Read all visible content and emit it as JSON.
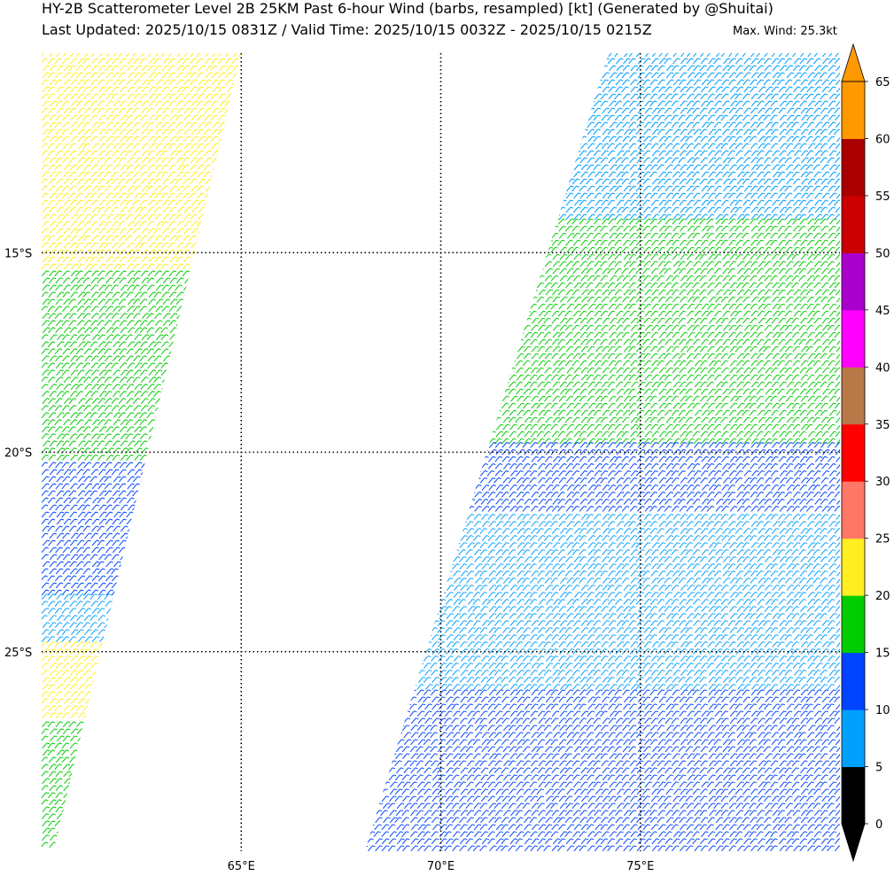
{
  "title_line1": "HY-2B Scatterometer Level 2B 25KM Past 6-hour Wind (barbs, resampled) [kt] (Generated by @Shuitai)",
  "title_line2": "Last Updated: 2025/10/15 0831Z / Valid Time: 2025/10/15 0032Z - 2025/10/15 0215Z",
  "max_wind": "Max. Wind: 25.3kt",
  "latitudes": [
    {
      "value": -15,
      "label": "15°S"
    },
    {
      "value": -20,
      "label": "20°S"
    },
    {
      "value": -25,
      "label": "25°S"
    }
  ],
  "longitudes": [
    {
      "value": 65,
      "label": "65°E"
    },
    {
      "value": 70,
      "label": "70°E"
    },
    {
      "value": 75,
      "label": "75°E"
    }
  ],
  "extent": {
    "lon_min": 60,
    "lon_max": 80,
    "lat_min": -30,
    "lat_max": -10
  },
  "colorbar": {
    "bins": [
      {
        "from": 0,
        "to": 5,
        "color": "#000000"
      },
      {
        "from": 5,
        "to": 10,
        "color": "#00a0ff"
      },
      {
        "from": 10,
        "to": 15,
        "color": "#0044ff"
      },
      {
        "from": 15,
        "to": 20,
        "color": "#00cc00"
      },
      {
        "from": 20,
        "to": 25,
        "color": "#ffee22"
      },
      {
        "from": 25,
        "to": 30,
        "color": "#ff7766"
      },
      {
        "from": 30,
        "to": 35,
        "color": "#ff0000"
      },
      {
        "from": 35,
        "to": 40,
        "color": "#b87848"
      },
      {
        "from": 40,
        "to": 45,
        "color": "#ff00ff"
      },
      {
        "from": 45,
        "to": 50,
        "color": "#aa00cc"
      },
      {
        "from": 50,
        "to": 55,
        "color": "#cc0000"
      },
      {
        "from": 55,
        "to": 60,
        "color": "#aa0000"
      },
      {
        "from": 60,
        "to": 65,
        "color": "#ff9900"
      }
    ],
    "tick_labels": [
      "0",
      "5",
      "10",
      "15",
      "20",
      "25",
      "30",
      "35",
      "40",
      "45",
      "50",
      "55",
      "60",
      "65"
    ],
    "under_color": "#000000",
    "over_color": "#ff9900"
  },
  "wind_swaths": [
    {
      "name": "western-swath",
      "polygon": [
        [
          60,
          -10
        ],
        [
          65,
          -10
        ],
        [
          60.3,
          -30
        ],
        [
          60,
          -30
        ]
      ],
      "regions": [
        {
          "lat_top": -10,
          "lat_bot": -15.5,
          "color": "#ffee22"
        },
        {
          "lat_top": -15.5,
          "lat_bot": -20.3,
          "color": "#00cc00"
        },
        {
          "lat_top": -20.3,
          "lat_bot": -23.6,
          "color": "#0044ff"
        },
        {
          "lat_top": -23.6,
          "lat_bot": -24.8,
          "color": "#00a0ff"
        },
        {
          "lat_top": -24.8,
          "lat_bot": -26.8,
          "color": "#ffee22"
        },
        {
          "lat_top": -26.8,
          "lat_bot": -30,
          "color": "#00cc00"
        }
      ]
    },
    {
      "name": "eastern-swath",
      "polygon": [
        [
          74.2,
          -10
        ],
        [
          80,
          -10
        ],
        [
          80,
          -30
        ],
        [
          68.1,
          -30
        ]
      ],
      "regions": [
        {
          "lat_top": -10,
          "lat_bot": -14.2,
          "color": "#00a0ff"
        },
        {
          "lat_top": -14.2,
          "lat_bot": -19.8,
          "color": "#00cc00"
        },
        {
          "lat_top": -19.8,
          "lat_bot": -21.6,
          "color": "#0044ff"
        },
        {
          "lat_top": -21.6,
          "lat_bot": -26.0,
          "color": "#00a0ff"
        },
        {
          "lat_top": -26.0,
          "lat_bot": -30,
          "color": "#0044ff"
        }
      ]
    }
  ]
}
